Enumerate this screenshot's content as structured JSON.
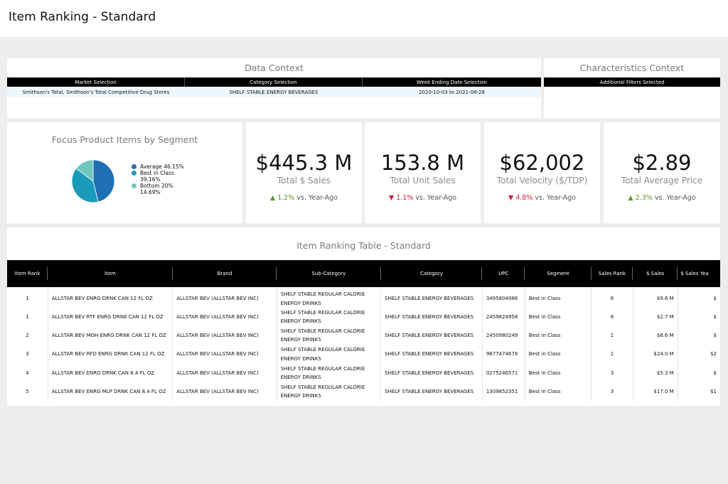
{
  "page": {
    "title": "Item Ranking - Standard"
  },
  "data_context": {
    "title": "Data Context",
    "headers": [
      "Market Selection",
      "Category Selection",
      "Week Ending Date Selection"
    ],
    "values": [
      "Smithson's Total, Smithson's Total Competitive Drug Stores",
      "SHELF STABLE ENERGY BEVERAGES",
      "2020-10-03 to 2021-08-28"
    ]
  },
  "characteristics_context": {
    "title": "Characteristics Context",
    "header": "Additional Filters Selected",
    "value": ""
  },
  "pie": {
    "title": "Focus Product Items by Segment",
    "slices": [
      {
        "label": "Average",
        "pct_text": "46.15%",
        "value": 46.15,
        "color": "#1f6fb5"
      },
      {
        "label": "Best in Class",
        "pct_text": "39.16%",
        "value": 39.16,
        "color": "#1a9ab9"
      },
      {
        "label": "Bottom 20%",
        "pct_text": "14.69%",
        "value": 14.69,
        "color": "#6ec7bd"
      }
    ]
  },
  "kpis": [
    {
      "value": "$445.3 M",
      "label": "Total $ Sales",
      "arrow": "▲",
      "change": "1.2%",
      "direction": "up",
      "suffix": "vs. Year-Ago"
    },
    {
      "value": "153.8 M",
      "label": "Total Unit Sales",
      "arrow": "▼",
      "change": "1.1%",
      "direction": "down",
      "suffix": "vs. Year-Ago"
    },
    {
      "value": "$62,002",
      "label": "Total Velocity ($/TDP)",
      "arrow": "▼",
      "change": "4.8%",
      "direction": "down",
      "suffix": "vs. Year-Ago"
    },
    {
      "value": "$2.89",
      "label": "Total Average Price",
      "arrow": "▲",
      "change": "2.3%",
      "direction": "up",
      "suffix": "vs. Year-Ago"
    }
  ],
  "table": {
    "title": "Item Ranking Table - Standard",
    "columns": [
      "Item Rank",
      "Item",
      "Brand",
      "Sub-Category",
      "Category",
      "UPC",
      "Segment",
      "Sales Rank",
      "$ Sales",
      "$ Sales Yea"
    ],
    "rows": [
      {
        "rank": "1",
        "item": "ALLSTAR BEV ENRG DRNK CAN 12 FL OZ",
        "brand": "ALLSTAR BEV (ALLSTAR BEV INC)",
        "subcat1": "SHELF STABLE REGULAR CALORIE",
        "subcat2": "ENERGY DRINKS",
        "category": "SHELF STABLE ENERGY BEVERAGES",
        "upc": "3495804986",
        "segment": "Best in Class",
        "sales_rank": "6",
        "sales": "$9.6 M",
        "sales_ya": "$"
      },
      {
        "rank": "1",
        "item": "ALLSTAR BEV RTF ENRG DRNK CAN 12 FL OZ",
        "brand": "ALLSTAR BEV (ALLSTAR BEV INC)",
        "subcat1": "SHELF STABLE REGULAR CALORIE",
        "subcat2": "ENERGY DRINKS",
        "category": "SHELF STABLE ENERGY BEVERAGES",
        "upc": "2459824958",
        "segment": "Best in Class",
        "sales_rank": "8",
        "sales": "$2.7 M",
        "sales_ya": "$"
      },
      {
        "rank": "2",
        "item": "ALLSTAR BEV MOH ENRG DRNK CAN 12 FL OZ",
        "brand": "ALLSTAR BEV (ALLSTAR BEV INC)",
        "subcat1": "SHELF STABLE REGULAR CALORIE",
        "subcat2": "ENERGY DRINKS",
        "category": "SHELF STABLE ENERGY BEVERAGES",
        "upc": "2450980249",
        "segment": "Best in Class",
        "sales_rank": "1",
        "sales": "$6.6 M",
        "sales_ya": "$"
      },
      {
        "rank": "3",
        "item": "ALLSTAR BEV RFD ENRG DRNK CAN 12 FL OZ",
        "brand": "ALLSTAR BEV (ALLSTAR BEV INC)",
        "subcat1": "SHELF STABLE REGULAR CALORIE",
        "subcat2": "ENERGY DRINKS",
        "category": "SHELF STABLE ENERGY BEVERAGES",
        "upc": "9877474678",
        "segment": "Best in Class",
        "sales_rank": "1",
        "sales": "$24.0 M",
        "sales_ya": "$2"
      },
      {
        "rank": "4",
        "item": "ALLSTAR BEV ENRG DRNK CAN 8.4 FL OZ",
        "brand": "ALLSTAR BEV (ALLSTAR BEV INC)",
        "subcat1": "SHELF STABLE REGULAR CALORIE",
        "subcat2": "ENERGY DRINKS",
        "category": "SHELF STABLE ENERGY BEVERAGES",
        "upc": "0275246571",
        "segment": "Best in Class",
        "sales_rank": "3",
        "sales": "$5.3 M",
        "sales_ya": "$"
      },
      {
        "rank": "5",
        "item": "ALLSTAR BEV ENRG MLP DRNK CAN 8.4 FL OZ",
        "brand": "ALLSTAR BEV (ALLSTAR BEV INC)",
        "subcat1": "SHELF STABLE REGULAR CALORIE",
        "subcat2": "ENERGY DRINKS",
        "category": "SHELF STABLE ENERGY BEVERAGES",
        "upc": "1309852351",
        "segment": "Best in Class",
        "sales_rank": "3",
        "sales": "$17.0 M",
        "sales_ya": "$1"
      }
    ]
  }
}
